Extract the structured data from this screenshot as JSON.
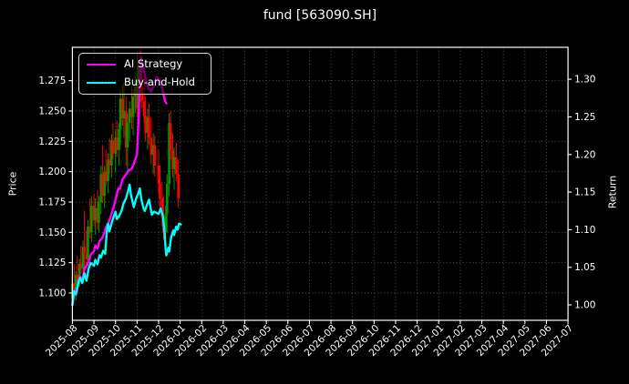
{
  "title": "fund [563090.SH]",
  "axes": {
    "x": {
      "tick_labels": [
        "2025-08",
        "2025-09",
        "2025-10",
        "2025-11",
        "2025-12",
        "2026-01",
        "2026-02",
        "2026-03",
        "2026-04",
        "2026-05",
        "2026-06",
        "2026-07",
        "2026-08",
        "2026-09",
        "2026-10",
        "2026-11",
        "2026-12",
        "2027-01",
        "2027-02",
        "2027-03",
        "2027-04",
        "2027-05",
        "2027-06",
        "2027-07"
      ],
      "range": [
        "2025-08-01",
        "2027-07-01"
      ]
    },
    "y_left": {
      "label": "Price",
      "tick_labels": [
        "1.100",
        "1.125",
        "1.150",
        "1.175",
        "1.200",
        "1.225",
        "1.250",
        "1.275"
      ],
      "ticks": [
        1.1,
        1.125,
        1.15,
        1.175,
        1.2,
        1.225,
        1.25,
        1.275
      ],
      "range": [
        1.0775,
        1.3025
      ]
    },
    "y_right": {
      "label": "Return",
      "tick_labels": [
        "1.00",
        "1.05",
        "1.10",
        "1.15",
        "1.20",
        "1.25",
        "1.30"
      ],
      "ticks": [
        1.0,
        1.05,
        1.1,
        1.15,
        1.2,
        1.25,
        1.3
      ],
      "range": [
        0.9795,
        1.3425
      ]
    }
  },
  "legend": [
    {
      "label": "AI Strategy",
      "color": "#ff00ff"
    },
    {
      "label": "Buy-and-Hold",
      "color": "#00ffff"
    }
  ],
  "colors": {
    "background": "#000000",
    "text": "#ffffff",
    "spine": "#ffffff",
    "grid": "#8a8a8a",
    "candle_up": "#009900",
    "candle_down": "#ff0000",
    "ai_strategy": "#ff00ff",
    "buy_and_hold": "#00ffff"
  },
  "chart_data": {
    "type": "candlestick+line",
    "title": "fund [563090.SH]",
    "xlabel": "",
    "ylabel_left": "Price",
    "ylabel_right": "Return",
    "grid": true,
    "legend_position": "upper left",
    "series": [
      {
        "name": "AI Strategy",
        "axis": "right",
        "color": "#ff00ff",
        "points": [
          [
            "2025-08-01",
            1.0
          ],
          [
            "2025-08-05",
            1.021
          ],
          [
            "2025-08-07",
            1.016
          ],
          [
            "2025-08-10",
            1.034
          ],
          [
            "2025-08-12",
            1.038
          ],
          [
            "2025-08-15",
            1.032
          ],
          [
            "2025-08-18",
            1.048
          ],
          [
            "2025-08-21",
            1.052
          ],
          [
            "2025-08-24",
            1.057
          ],
          [
            "2025-08-27",
            1.067
          ],
          [
            "2025-09-01",
            1.071
          ],
          [
            "2025-09-03",
            1.079
          ],
          [
            "2025-09-06",
            1.075
          ],
          [
            "2025-09-09",
            1.085
          ],
          [
            "2025-09-13",
            1.089
          ],
          [
            "2025-09-16",
            1.097
          ],
          [
            "2025-09-18",
            1.103
          ],
          [
            "2025-09-22",
            1.11
          ],
          [
            "2025-09-26",
            1.121
          ],
          [
            "2025-09-28",
            1.127
          ],
          [
            "2025-10-01",
            1.14
          ],
          [
            "2025-10-05",
            1.155
          ],
          [
            "2025-10-07",
            1.154
          ],
          [
            "2025-10-11",
            1.167
          ],
          [
            "2025-10-15",
            1.172
          ],
          [
            "2025-10-20",
            1.179
          ],
          [
            "2025-10-24",
            1.181
          ],
          [
            "2025-10-27",
            1.188
          ],
          [
            "2025-11-01",
            1.2
          ],
          [
            "2025-11-03",
            1.245
          ],
          [
            "2025-11-05",
            1.3
          ],
          [
            "2025-11-07",
            1.329
          ],
          [
            "2025-11-09",
            1.32
          ],
          [
            "2025-11-13",
            1.302
          ],
          [
            "2025-11-17",
            1.288
          ],
          [
            "2025-11-21",
            1.284
          ],
          [
            "2025-11-25",
            1.292
          ],
          [
            "2025-11-29",
            1.303
          ],
          [
            "2025-12-03",
            1.298
          ],
          [
            "2025-12-06",
            1.288
          ],
          [
            "2025-12-10",
            1.272
          ],
          [
            "2025-12-12",
            1.268
          ]
        ]
      },
      {
        "name": "Buy-and-Hold",
        "axis": "right",
        "color": "#00ffff",
        "points": [
          [
            "2025-08-01",
            1.0
          ],
          [
            "2025-08-03",
            1.018
          ],
          [
            "2025-08-06",
            1.014
          ],
          [
            "2025-08-10",
            1.032
          ],
          [
            "2025-08-12",
            1.036
          ],
          [
            "2025-08-15",
            1.029
          ],
          [
            "2025-08-18",
            1.042
          ],
          [
            "2025-08-21",
            1.032
          ],
          [
            "2025-08-24",
            1.048
          ],
          [
            "2025-08-27",
            1.056
          ],
          [
            "2025-09-01",
            1.052
          ],
          [
            "2025-09-03",
            1.06
          ],
          [
            "2025-09-06",
            1.054
          ],
          [
            "2025-09-09",
            1.066
          ],
          [
            "2025-09-11",
            1.063
          ],
          [
            "2025-09-14",
            1.072
          ],
          [
            "2025-09-17",
            1.068
          ],
          [
            "2025-09-19",
            1.095
          ],
          [
            "2025-09-21",
            1.108
          ],
          [
            "2025-09-23",
            1.098
          ],
          [
            "2025-09-27",
            1.112
          ],
          [
            "2025-10-01",
            1.124
          ],
          [
            "2025-10-03",
            1.114
          ],
          [
            "2025-10-06",
            1.118
          ],
          [
            "2025-10-10",
            1.126
          ],
          [
            "2025-10-12",
            1.134
          ],
          [
            "2025-10-16",
            1.142
          ],
          [
            "2025-10-19",
            1.152
          ],
          [
            "2025-10-21",
            1.16
          ],
          [
            "2025-10-23",
            1.146
          ],
          [
            "2025-10-27",
            1.13
          ],
          [
            "2025-10-30",
            1.141
          ],
          [
            "2025-11-03",
            1.149
          ],
          [
            "2025-11-05",
            1.155
          ],
          [
            "2025-11-07",
            1.141
          ],
          [
            "2025-11-10",
            1.129
          ],
          [
            "2025-11-12",
            1.125
          ],
          [
            "2025-11-15",
            1.133
          ],
          [
            "2025-11-18",
            1.14
          ],
          [
            "2025-11-22",
            1.12
          ],
          [
            "2025-11-25",
            1.124
          ],
          [
            "2025-12-01",
            1.121
          ],
          [
            "2025-12-04",
            1.128
          ],
          [
            "2025-12-07",
            1.119
          ],
          [
            "2025-12-09",
            1.1
          ],
          [
            "2025-12-11",
            1.075
          ],
          [
            "2025-12-12",
            1.066
          ],
          [
            "2025-12-15",
            1.076
          ],
          [
            "2025-12-16",
            1.071
          ],
          [
            "2025-12-19",
            1.091
          ],
          [
            "2025-12-22",
            1.099
          ],
          [
            "2025-12-23",
            1.093
          ],
          [
            "2025-12-26",
            1.104
          ],
          [
            "2025-12-28",
            1.1
          ],
          [
            "2025-12-30",
            1.108
          ],
          [
            "2026-01-02",
            1.107
          ]
        ]
      }
    ],
    "candles_axis": "left",
    "candles": [
      [
        "2025-08-01",
        1.095,
        1.112,
        1.088,
        1.108
      ],
      [
        "2025-08-04",
        1.108,
        1.124,
        1.1,
        1.102
      ],
      [
        "2025-08-06",
        1.102,
        1.118,
        1.094,
        1.115
      ],
      [
        "2025-08-08",
        1.115,
        1.13,
        1.108,
        1.112
      ],
      [
        "2025-08-11",
        1.112,
        1.128,
        1.105,
        1.124
      ],
      [
        "2025-08-13",
        1.124,
        1.139,
        1.116,
        1.12
      ],
      [
        "2025-08-16",
        1.12,
        1.143,
        1.113,
        1.138
      ],
      [
        "2025-08-18",
        1.138,
        1.168,
        1.118,
        1.133
      ],
      [
        "2025-08-21",
        1.133,
        1.152,
        1.12,
        1.128
      ],
      [
        "2025-08-23",
        1.128,
        1.16,
        1.122,
        1.155
      ],
      [
        "2025-08-26",
        1.155,
        1.178,
        1.145,
        1.15
      ],
      [
        "2025-08-28",
        1.15,
        1.18,
        1.142,
        1.172
      ],
      [
        "2025-09-01",
        1.172,
        1.182,
        1.155,
        1.16
      ],
      [
        "2025-09-03",
        1.16,
        1.178,
        1.148,
        1.17
      ],
      [
        "2025-09-06",
        1.17,
        1.185,
        1.152,
        1.158
      ],
      [
        "2025-09-08",
        1.158,
        1.18,
        1.15,
        1.175
      ],
      [
        "2025-09-11",
        1.175,
        1.205,
        1.165,
        1.198
      ],
      [
        "2025-09-13",
        1.198,
        1.222,
        1.174,
        1.18
      ],
      [
        "2025-09-16",
        1.18,
        1.205,
        1.17,
        1.2
      ],
      [
        "2025-09-18",
        1.2,
        1.218,
        1.188,
        1.192
      ],
      [
        "2025-09-21",
        1.192,
        1.215,
        1.182,
        1.21
      ],
      [
        "2025-09-23",
        1.21,
        1.228,
        1.198,
        1.205
      ],
      [
        "2025-09-26",
        1.205,
        1.231,
        1.195,
        1.226
      ],
      [
        "2025-09-28",
        1.226,
        1.24,
        1.21,
        1.215
      ],
      [
        "2025-10-01",
        1.215,
        1.235,
        1.2,
        1.228
      ],
      [
        "2025-10-03",
        1.228,
        1.242,
        1.212,
        1.218
      ],
      [
        "2025-10-06",
        1.218,
        1.24,
        1.205,
        1.235
      ],
      [
        "2025-10-08",
        1.235,
        1.267,
        1.222,
        1.26
      ],
      [
        "2025-10-11",
        1.26,
        1.272,
        1.238,
        1.244
      ],
      [
        "2025-10-13",
        1.244,
        1.274,
        1.228,
        1.25
      ],
      [
        "2025-10-16",
        1.25,
        1.262,
        1.205,
        1.22
      ],
      [
        "2025-10-18",
        1.22,
        1.248,
        1.198,
        1.24
      ],
      [
        "2025-10-21",
        1.24,
        1.258,
        1.225,
        1.252
      ],
      [
        "2025-10-24",
        1.252,
        1.27,
        1.235,
        1.245
      ],
      [
        "2025-10-26",
        1.245,
        1.268,
        1.23,
        1.262
      ],
      [
        "2025-10-29",
        1.262,
        1.282,
        1.248,
        1.275
      ],
      [
        "2025-11-01",
        1.275,
        1.298,
        1.245,
        1.252
      ],
      [
        "2025-11-03",
        1.252,
        1.292,
        1.24,
        1.285
      ],
      [
        "2025-11-06",
        1.285,
        1.3,
        1.262,
        1.27
      ],
      [
        "2025-11-08",
        1.27,
        1.288,
        1.252,
        1.258
      ],
      [
        "2025-11-11",
        1.258,
        1.278,
        1.24,
        1.246
      ],
      [
        "2025-11-13",
        1.246,
        1.262,
        1.225,
        1.232
      ],
      [
        "2025-11-16",
        1.232,
        1.252,
        1.218,
        1.245
      ],
      [
        "2025-11-18",
        1.245,
        1.256,
        1.222,
        1.228
      ],
      [
        "2025-11-21",
        1.228,
        1.244,
        1.206,
        1.214
      ],
      [
        "2025-11-24",
        1.214,
        1.232,
        1.198,
        1.222
      ],
      [
        "2025-11-26",
        1.222,
        1.23,
        1.196,
        1.205
      ],
      [
        "2025-12-01",
        1.205,
        1.218,
        1.182,
        1.19
      ],
      [
        "2025-12-03",
        1.19,
        1.205,
        1.17,
        1.178
      ],
      [
        "2025-12-06",
        1.178,
        1.192,
        1.155,
        1.162
      ],
      [
        "2025-12-08",
        1.162,
        1.18,
        1.144,
        1.15
      ],
      [
        "2025-12-11",
        1.15,
        1.172,
        1.13,
        1.165
      ],
      [
        "2025-12-13",
        1.165,
        1.198,
        1.15,
        1.19
      ],
      [
        "2025-12-16",
        1.19,
        1.248,
        1.18,
        1.24
      ],
      [
        "2025-12-18",
        1.24,
        1.25,
        1.21,
        1.218
      ],
      [
        "2025-12-21",
        1.218,
        1.232,
        1.195,
        1.202
      ],
      [
        "2025-12-23",
        1.202,
        1.22,
        1.185,
        1.212
      ],
      [
        "2025-12-26",
        1.212,
        1.224,
        1.192,
        1.198
      ],
      [
        "2025-12-29",
        1.198,
        1.21,
        1.17,
        1.178
      ]
    ]
  }
}
